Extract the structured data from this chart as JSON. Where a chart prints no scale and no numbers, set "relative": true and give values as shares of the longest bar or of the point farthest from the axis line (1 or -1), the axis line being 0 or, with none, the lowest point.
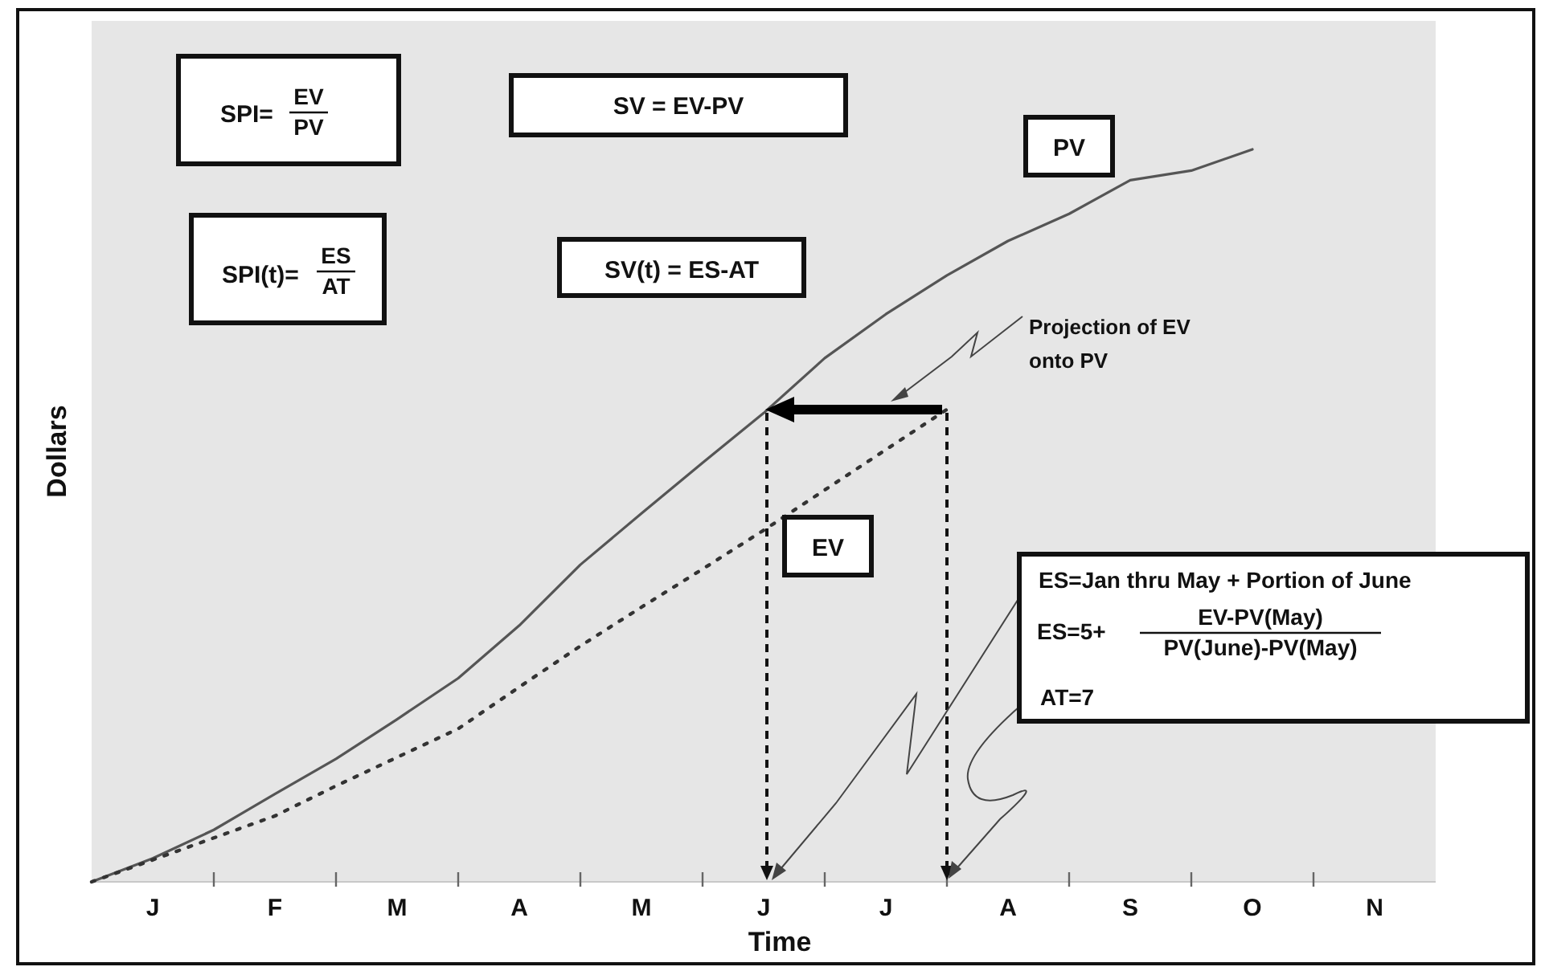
{
  "chart_data": {
    "type": "line",
    "relative": true,
    "xlabel": "Time",
    "ylabel": "Dollars",
    "categories": [
      null,
      "J",
      null,
      "F",
      null,
      "M",
      null,
      "A",
      null,
      "M",
      null,
      "J",
      null,
      "J",
      null,
      "A",
      null,
      "S",
      null,
      "O",
      null,
      "N",
      null
    ],
    "series": [
      {
        "name": "PV",
        "color": "#555555",
        "line_style": "solid",
        "values": [
          0,
          0.032,
          0.071,
          0.12,
          0.168,
          0.222,
          0.278,
          0.35,
          0.433,
          0.503,
          0.572,
          0.64,
          0.715,
          0.775,
          0.828,
          0.875,
          0.912,
          0.958,
          0.971,
          1,
          null,
          null,
          null
        ]
      },
      {
        "name": "EV",
        "color": "#333333",
        "line_style": "dotted",
        "values": [
          0,
          0.03,
          0.06,
          0.09,
          0.131,
          0.17,
          0.209,
          0.266,
          0.322,
          0.375,
          0.427,
          0.48,
          0.535,
          0.59,
          0.645,
          null,
          null,
          null,
          null,
          null,
          null,
          null,
          null
        ]
      }
    ],
    "annotations": [
      "SPI=",
      "EV",
      "PV",
      "SV = EV-PV",
      "SPI(t)=",
      "ES",
      "AT",
      "SV(t) = ES-AT",
      "Projection of EV onto PV",
      "ES=Jan thru May + Portion of June",
      "ES=5+",
      "EV-PV(May)",
      "PV(June)-PV(May)",
      "AT=7"
    ]
  }
}
